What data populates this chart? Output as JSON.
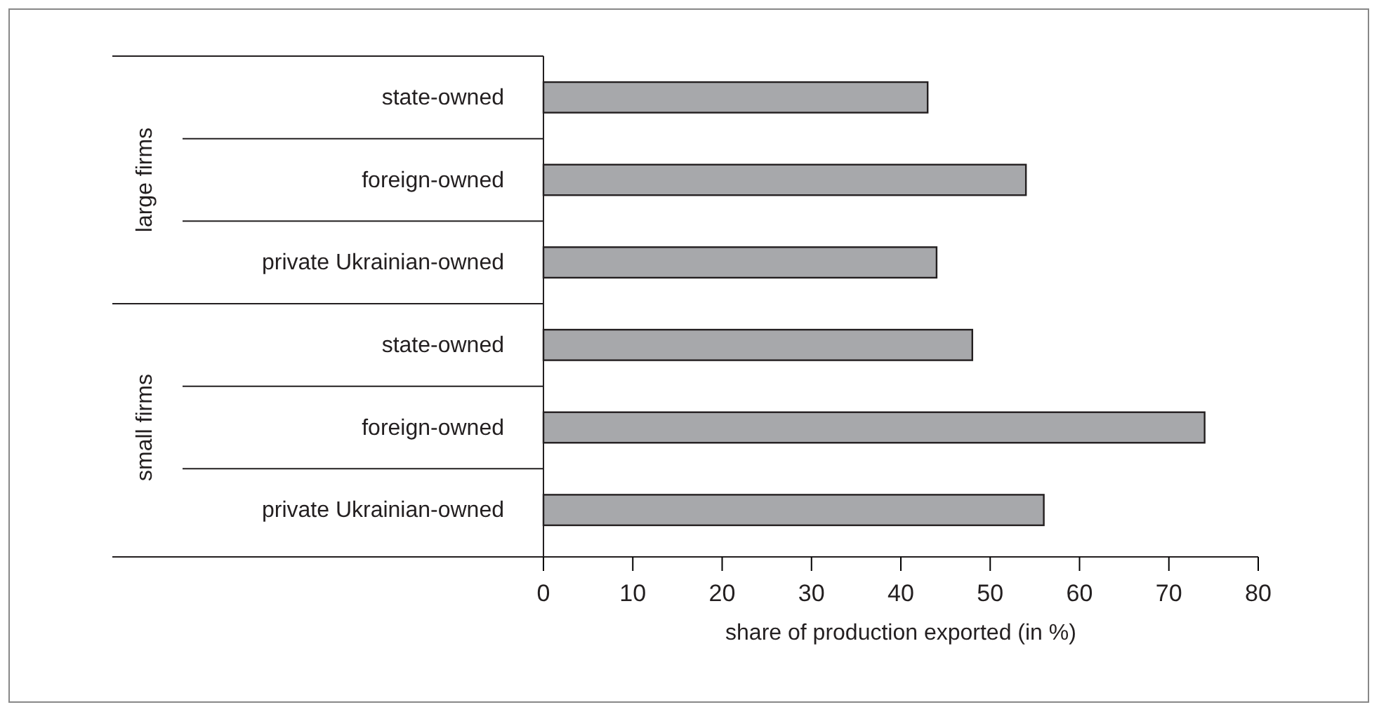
{
  "chart_data": {
    "type": "bar",
    "orientation": "horizontal",
    "categories": [
      "state-owned",
      "foreign-owned",
      "private Ukrainian-owned",
      "state-owned",
      "foreign-owned",
      "private Ukrainian-owned"
    ],
    "values": [
      43,
      54,
      44,
      48,
      74,
      56
    ],
    "color": "#a7a8ab",
    "xlim": [
      0,
      80
    ],
    "xticks": [
      0,
      10,
      20,
      30,
      40,
      50,
      60,
      70,
      80
    ],
    "xlabel": "share of production exported (in %)",
    "annotations": [
      "large firms",
      "small firms"
    ],
    "grid": false
  }
}
